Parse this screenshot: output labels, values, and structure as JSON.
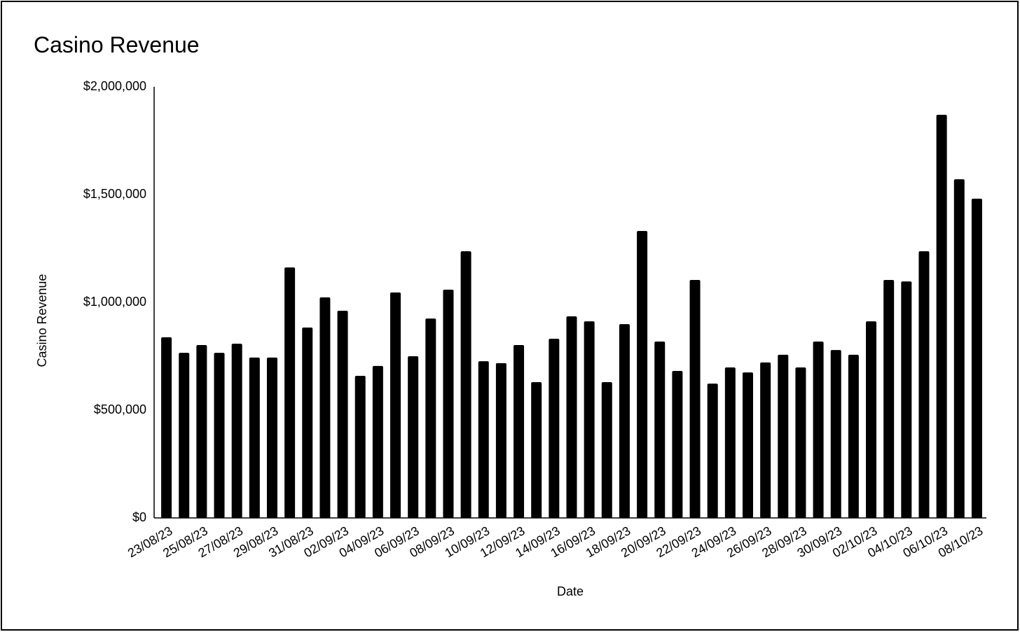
{
  "chart_data": {
    "type": "bar",
    "title": "Casino Revenue",
    "x_label": "Date",
    "y_label": "Casino Revenue",
    "categories": [
      "23/08/23",
      null,
      "25/08/23",
      null,
      "27/08/23",
      null,
      "29/08/23",
      null,
      "31/08/23",
      null,
      "02/09/23",
      null,
      "04/09/23",
      null,
      "06/09/23",
      null,
      "08/09/23",
      null,
      "10/09/23",
      null,
      "12/09/23",
      null,
      "14/09/23",
      null,
      "16/09/23",
      null,
      "18/09/23",
      null,
      "20/09/23",
      null,
      "22/09/23",
      null,
      "24/09/23",
      null,
      "26/09/23",
      null,
      "28/09/23",
      null,
      "30/09/23",
      null,
      "02/10/23",
      null,
      "04/10/23",
      null,
      "06/10/23",
      null,
      "08/10/23"
    ],
    "values": [
      838000,
      766000,
      802000,
      766000,
      808000,
      744000,
      744000,
      1162000,
      883000,
      1023000,
      961000,
      659000,
      705000,
      1046000,
      750000,
      925000,
      1059000,
      1237000,
      727000,
      718000,
      802000,
      630000,
      831000,
      935000,
      912000,
      630000,
      899000,
      1331000,
      818000,
      682000,
      1104000,
      623000,
      698000,
      675000,
      721000,
      757000,
      698000,
      818000,
      779000,
      757000,
      912000,
      1104000,
      1097000,
      1237000,
      1870000,
      1571000,
      1481000
    ],
    "color": "#000000",
    "ylim": [
      0,
      2000000
    ],
    "yticks": [
      {
        "value": 0,
        "label": "$0"
      },
      {
        "value": 500000,
        "label": "$500,000"
      },
      {
        "value": 1000000,
        "label": "$1,000,000"
      },
      {
        "value": 1500000,
        "label": "$1,500,000"
      },
      {
        "value": 2000000,
        "label": "$2,000,000"
      }
    ],
    "grid": false
  }
}
